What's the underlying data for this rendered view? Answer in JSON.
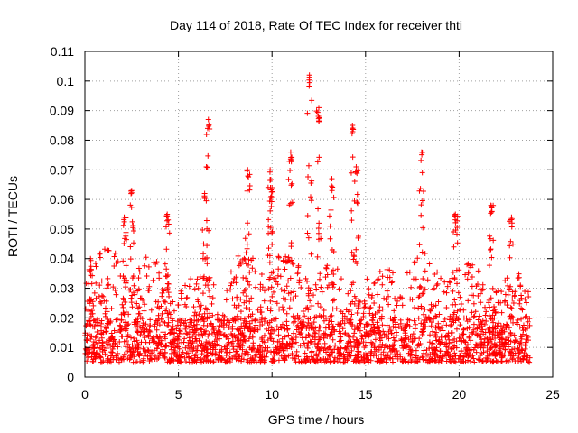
{
  "chart_data": {
    "type": "scatter",
    "title": "Day 114 of 2018, Rate Of TEC Index for receiver thti",
    "xlabel": "GPS time / hours",
    "ylabel": "ROTI / TECUs",
    "xlim": [
      0,
      25
    ],
    "ylim": [
      0,
      0.11
    ],
    "x_ticks": [
      0,
      5,
      10,
      15,
      20,
      25
    ],
    "y_ticks": [
      0,
      0.01,
      0.02,
      0.03,
      0.04,
      0.05,
      0.06,
      0.07,
      0.08,
      0.09,
      0.1,
      0.11
    ],
    "x_tick_labels": [
      "0",
      "5",
      "10",
      "15",
      "20",
      "25"
    ],
    "y_tick_labels": [
      "0",
      "0.01",
      "0.02",
      "0.03",
      "0.04",
      "0.05",
      "0.06",
      "0.07",
      "0.08",
      "0.09",
      "0.1",
      "0.11"
    ],
    "grid": true,
    "marker": "+",
    "color": "#ff0000",
    "series": [
      {
        "name": "ROTI",
        "x_range": [
          0,
          23.8
        ],
        "baseline_range": [
          0.005,
          0.02
        ],
        "typical_max": 0.04,
        "peaks": [
          {
            "x": 0.3,
            "y": 0.04
          },
          {
            "x": 2.1,
            "y": 0.054
          },
          {
            "x": 2.5,
            "y": 0.063
          },
          {
            "x": 4.4,
            "y": 0.055
          },
          {
            "x": 6.4,
            "y": 0.062
          },
          {
            "x": 6.6,
            "y": 0.087
          },
          {
            "x": 8.7,
            "y": 0.07
          },
          {
            "x": 9.9,
            "y": 0.07
          },
          {
            "x": 10.0,
            "y": 0.064
          },
          {
            "x": 11.0,
            "y": 0.076
          },
          {
            "x": 12.0,
            "y": 0.102
          },
          {
            "x": 12.5,
            "y": 0.091
          },
          {
            "x": 13.2,
            "y": 0.067
          },
          {
            "x": 14.3,
            "y": 0.085
          },
          {
            "x": 14.5,
            "y": 0.071
          },
          {
            "x": 18.0,
            "y": 0.076
          },
          {
            "x": 19.8,
            "y": 0.055
          },
          {
            "x": 21.7,
            "y": 0.058
          },
          {
            "x": 22.8,
            "y": 0.054
          }
        ]
      }
    ]
  }
}
